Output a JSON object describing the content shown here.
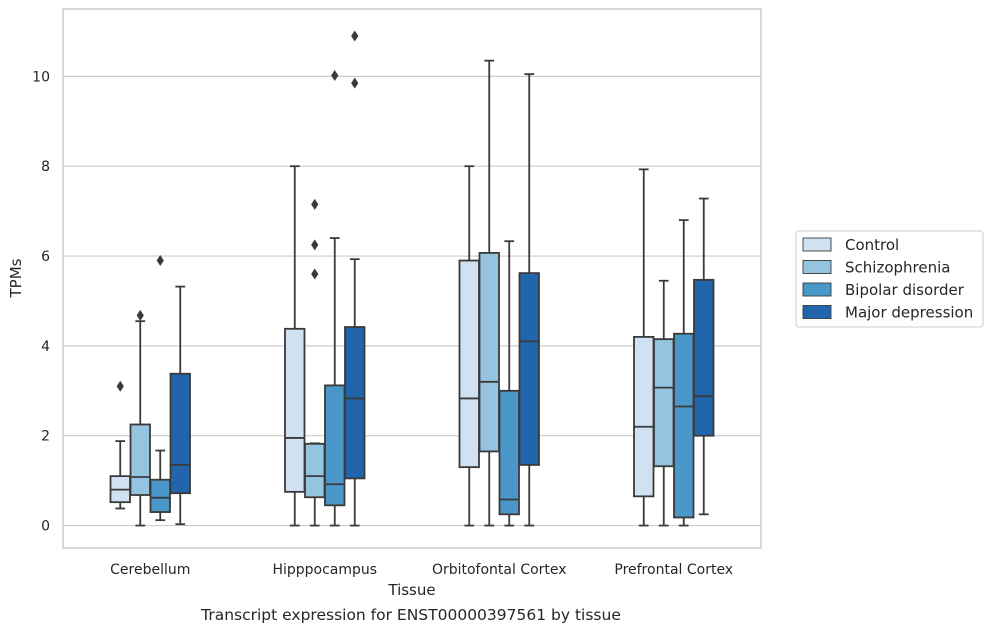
{
  "caption": "Transcript expression for ENST00000397561 by tissue",
  "colors": {
    "Control": "#d0e1f2",
    "Schizophrenia": "#94c4df",
    "Bipolar disorder": "#4a98c9",
    "Major depression": "#2166ac",
    "line": "#3a3a3a",
    "grid": "#cccccc"
  },
  "chart_data": {
    "type": "box",
    "xlabel": "Tissue",
    "ylabel": "TPMs",
    "ylim": [
      -0.5,
      11.5
    ],
    "yticks": [
      0,
      2,
      4,
      6,
      8,
      10
    ],
    "grid": "horizontal",
    "legend_position": "right",
    "categories": [
      "Cerebellum",
      "Hipppocampus",
      "Orbitofontal Cortex",
      "Prefrontal Cortex"
    ],
    "series": [
      {
        "name": "Control",
        "boxes": [
          {
            "whislo": 0.38,
            "q1": 0.52,
            "med": 0.8,
            "q3": 1.1,
            "whishi": 1.88,
            "fliers": [
              3.1
            ]
          },
          {
            "whislo": 0.0,
            "q1": 0.75,
            "med": 1.95,
            "q3": 4.38,
            "whishi": 8.0,
            "fliers": []
          },
          {
            "whislo": 0.0,
            "q1": 1.3,
            "med": 2.83,
            "q3": 5.9,
            "whishi": 8.0,
            "fliers": []
          },
          {
            "whislo": 0.0,
            "q1": 0.65,
            "med": 2.2,
            "q3": 4.2,
            "whishi": 7.93,
            "fliers": []
          }
        ]
      },
      {
        "name": "Schizophrenia",
        "boxes": [
          {
            "whislo": 0.0,
            "q1": 0.68,
            "med": 1.08,
            "q3": 2.25,
            "whishi": 4.55,
            "fliers": [
              4.68
            ]
          },
          {
            "whislo": 0.0,
            "q1": 0.63,
            "med": 1.1,
            "q3": 1.82,
            "whishi": 1.83,
            "fliers": [
              5.6,
              6.25,
              7.15
            ]
          },
          {
            "whislo": 0.0,
            "q1": 1.65,
            "med": 3.2,
            "q3": 6.07,
            "whishi": 10.35,
            "fliers": []
          },
          {
            "whislo": 0.0,
            "q1": 1.32,
            "med": 3.07,
            "q3": 4.15,
            "whishi": 5.45,
            "fliers": []
          }
        ]
      },
      {
        "name": "Bipolar disorder",
        "boxes": [
          {
            "whislo": 0.12,
            "q1": 0.3,
            "med": 0.62,
            "q3": 1.02,
            "whishi": 1.67,
            "fliers": [
              5.9
            ]
          },
          {
            "whislo": 0.0,
            "q1": 0.45,
            "med": 0.92,
            "q3": 3.12,
            "whishi": 6.4,
            "fliers": [
              10.02
            ]
          },
          {
            "whislo": 0.0,
            "q1": 0.25,
            "med": 0.58,
            "q3": 3.0,
            "whishi": 6.33,
            "fliers": []
          },
          {
            "whislo": 0.0,
            "q1": 0.18,
            "med": 2.65,
            "q3": 4.27,
            "whishi": 6.8,
            "fliers": []
          }
        ]
      },
      {
        "name": "Major depression",
        "boxes": [
          {
            "whislo": 0.03,
            "q1": 0.72,
            "med": 1.35,
            "q3": 3.38,
            "whishi": 5.32,
            "fliers": []
          },
          {
            "whislo": 0.0,
            "q1": 1.05,
            "med": 2.83,
            "q3": 4.42,
            "whishi": 5.93,
            "fliers": [
              9.85,
              10.9
            ]
          },
          {
            "whislo": 0.0,
            "q1": 1.35,
            "med": 4.1,
            "q3": 5.62,
            "whishi": 10.05,
            "fliers": []
          },
          {
            "whislo": 0.25,
            "q1": 2.0,
            "med": 2.88,
            "q3": 5.47,
            "whishi": 7.28,
            "fliers": []
          }
        ]
      }
    ]
  }
}
